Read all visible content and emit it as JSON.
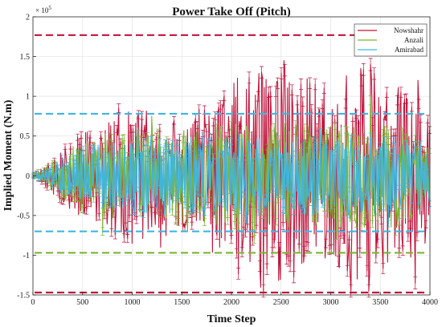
{
  "chart_data": {
    "type": "line",
    "title": "Power Take Off (Pitch)",
    "xlabel": "Time Step",
    "ylabel": "Implied Moment (N.m)",
    "y_multiplier_label": "× 10^5",
    "y_multiplier_base": "× 10",
    "y_multiplier_exp": "5",
    "xlim": [
      0,
      4000
    ],
    "ylim": [
      -1.5,
      2.0
    ],
    "y_unit_scale": 100000,
    "x_ticks": [
      "0",
      "500",
      "1000",
      "1500",
      "2000",
      "2500",
      "3000",
      "3500",
      "4000"
    ],
    "y_ticks": [
      "-1.5",
      "-1",
      "-0.5",
      "0",
      "0.5",
      "1",
      "1.5",
      "2"
    ],
    "x_tick_values": [
      0,
      500,
      1000,
      1500,
      2000,
      2500,
      3000,
      3500,
      4000
    ],
    "y_tick_values": [
      -1.5,
      -1.0,
      -0.5,
      0.0,
      0.5,
      1.0,
      1.5,
      2.0
    ],
    "grid": true,
    "legend_position": "top-right",
    "series": [
      {
        "name": "Nowshahr",
        "color": "#c0143c",
        "upper_bound": 1.77,
        "lower_bound": -1.47,
        "envelope": [
          [
            0,
            0.02
          ],
          [
            100,
            0.1
          ],
          [
            250,
            0.3
          ],
          [
            400,
            0.45
          ],
          [
            600,
            0.6
          ],
          [
            900,
            0.8
          ],
          [
            1100,
            0.85
          ],
          [
            1500,
            0.7
          ],
          [
            1800,
            1.0
          ],
          [
            2000,
            1.2
          ],
          [
            2300,
            1.45
          ],
          [
            2600,
            1.35
          ],
          [
            3000,
            1.1
          ],
          [
            3300,
            1.4
          ],
          [
            3500,
            1.3
          ],
          [
            3800,
            1.1
          ],
          [
            4000,
            0.7
          ]
        ],
        "peaks": [
          [
            550,
            0.55
          ],
          [
            720,
            -0.5
          ],
          [
            860,
            0.85
          ],
          [
            1000,
            -0.85
          ],
          [
            1050,
            0.75
          ],
          [
            1290,
            -0.9
          ],
          [
            1410,
            0.65
          ],
          [
            1510,
            -0.65
          ],
          [
            1630,
            0.65
          ],
          [
            1750,
            0.6
          ],
          [
            1850,
            -0.75
          ],
          [
            2000,
            -0.8
          ],
          [
            2100,
            0.75
          ],
          [
            2270,
            1.0
          ],
          [
            2320,
            -1.45
          ],
          [
            2380,
            1.05
          ],
          [
            2430,
            -0.85
          ],
          [
            2530,
            1.45
          ],
          [
            2560,
            -1.05
          ],
          [
            2660,
            0.95
          ],
          [
            2740,
            -0.95
          ],
          [
            2880,
            0.8
          ],
          [
            2950,
            -0.85
          ],
          [
            3070,
            0.9
          ],
          [
            3140,
            -0.85
          ],
          [
            3200,
            -1.45
          ],
          [
            3250,
            0.85
          ],
          [
            3310,
            1.2
          ],
          [
            3380,
            -1.45
          ],
          [
            3400,
            1.4
          ],
          [
            3470,
            -0.85
          ],
          [
            3560,
            1.05
          ],
          [
            3670,
            0.95
          ],
          [
            3720,
            -0.75
          ],
          [
            3850,
            -1.35
          ],
          [
            3880,
            1.2
          ],
          [
            3950,
            -0.85
          ]
        ]
      },
      {
        "name": "Anzali",
        "color": "#7ab632",
        "upper_bound": null,
        "lower_bound": -0.97,
        "envelope": [
          [
            0,
            0.02
          ],
          [
            150,
            0.12
          ],
          [
            300,
            0.3
          ],
          [
            500,
            0.45
          ],
          [
            800,
            0.55
          ],
          [
            1200,
            0.55
          ],
          [
            1600,
            0.6
          ],
          [
            2000,
            0.65
          ],
          [
            2400,
            0.65
          ],
          [
            2800,
            0.6
          ],
          [
            3200,
            0.65
          ],
          [
            3600,
            0.65
          ],
          [
            4000,
            0.45
          ]
        ],
        "peaks": [
          [
            700,
            -0.7
          ],
          [
            1200,
            0.75
          ],
          [
            1560,
            -0.7
          ],
          [
            2230,
            -0.8
          ],
          [
            2650,
            0.65
          ],
          [
            3060,
            -0.75
          ],
          [
            3400,
            0.95
          ],
          [
            3650,
            -0.7
          ]
        ]
      },
      {
        "name": "Amirabad",
        "color": "#3fb6e0",
        "upper_bound": 0.78,
        "lower_bound": -0.7,
        "envelope": [
          [
            0,
            0.02
          ],
          [
            150,
            0.1
          ],
          [
            300,
            0.25
          ],
          [
            500,
            0.35
          ],
          [
            800,
            0.45
          ],
          [
            1200,
            0.5
          ],
          [
            1600,
            0.5
          ],
          [
            2000,
            0.5
          ],
          [
            2400,
            0.5
          ],
          [
            2800,
            0.5
          ],
          [
            3200,
            0.5
          ],
          [
            3600,
            0.5
          ],
          [
            4000,
            0.4
          ]
        ],
        "peaks": [
          [
            1050,
            0.6
          ],
          [
            2150,
            -0.6
          ],
          [
            2900,
            0.55
          ],
          [
            3580,
            -0.6
          ]
        ]
      }
    ]
  }
}
